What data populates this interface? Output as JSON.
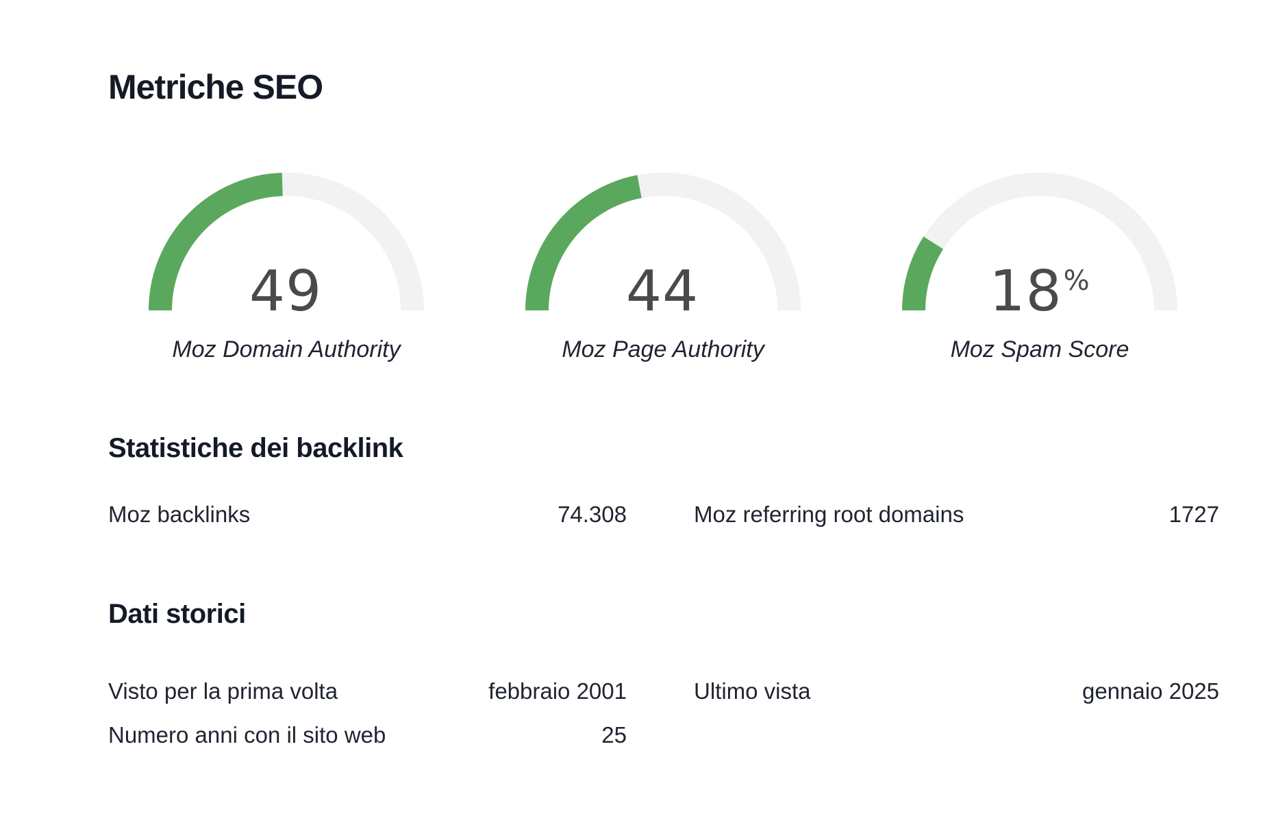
{
  "page": {
    "title": "Metriche SEO"
  },
  "colors": {
    "accent": "#5aa85e",
    "track": "#f2f2f2",
    "value_text": "#4a4a4a",
    "heading_text": "#141a26"
  },
  "gauges": [
    {
      "value": "49",
      "suffix": "",
      "label": "Moz Domain Authority",
      "fraction": 0.49
    },
    {
      "value": "44",
      "suffix": "",
      "label": "Moz Page Authority",
      "fraction": 0.44
    },
    {
      "value": "18",
      "suffix": "%",
      "label": "Moz Spam Score",
      "fraction": 0.18
    }
  ],
  "backlinks": {
    "title": "Statistiche dei backlink",
    "backlinks_label": "Moz backlinks",
    "backlinks_value": "74.308",
    "root_domains_label": "Moz referring root domains",
    "root_domains_value": "1727"
  },
  "history": {
    "title": "Dati storici",
    "first_seen_label": "Visto per la prima volta",
    "first_seen_value": "febbraio 2001",
    "last_seen_label": "Ultimo vista",
    "last_seen_value": "gennaio 2025",
    "years_label": "Numero anni con il sito web",
    "years_value": "25"
  }
}
